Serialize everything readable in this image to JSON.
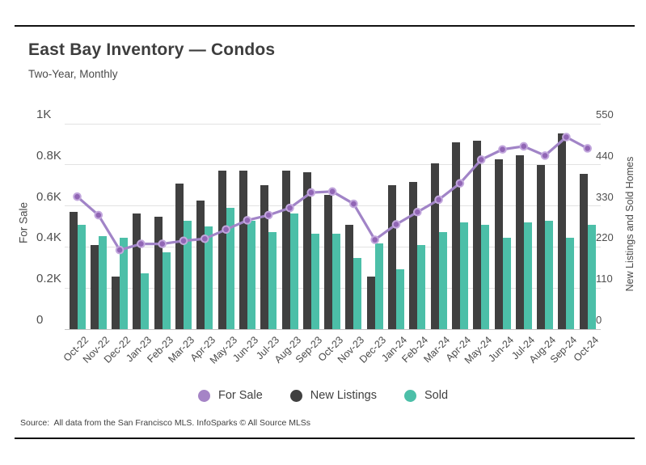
{
  "page": {
    "title": "East Bay Inventory — Condos",
    "subtitle": "Two-Year, Monthly",
    "source_note": "Source:  All data from the San Francisco MLS. InfoSparks © All Source MLSs"
  },
  "legend": [
    {
      "label": "For Sale",
      "color": "#a584c6"
    },
    {
      "label": "New Listings",
      "color": "#404040"
    },
    {
      "label": "Sold",
      "color": "#4cbfa8"
    }
  ],
  "chart_data": {
    "type": "combo",
    "title": "East Bay Inventory — Condos",
    "subtitle": "Two-Year, Monthly",
    "grid": true,
    "legend_position": "bottom",
    "categories": [
      "Oct-22",
      "Nov-22",
      "Dec-22",
      "Jan-23",
      "Feb-23",
      "Mar-23",
      "Apr-23",
      "May-23",
      "Jun-23",
      "Jul-23",
      "Aug-23",
      "Sep-23",
      "Oct-23",
      "Nov-23",
      "Dec-23",
      "Jan-24",
      "Feb-24",
      "Mar-24",
      "Apr-24",
      "May-24",
      "Jun-24",
      "Jul-24",
      "Aug-24",
      "Sep-24",
      "Oct-24"
    ],
    "left_axis": {
      "title": "For Sale",
      "min": 0,
      "max": 1000,
      "tick_values": [
        0,
        200,
        400,
        600,
        800,
        1000
      ],
      "tick_labels": [
        "0",
        "0.2K",
        "0.4K",
        "0.6K",
        "0.8K",
        "1K"
      ]
    },
    "right_axis": {
      "title": "New Listings and Sold Homes",
      "min": 0,
      "max": 550,
      "tick_values": [
        0,
        110,
        220,
        330,
        440,
        550
      ],
      "tick_labels": [
        "0",
        "110",
        "220",
        "330",
        "440",
        "550"
      ]
    },
    "series": [
      {
        "name": "For Sale",
        "type": "line",
        "axis": "left",
        "color": "#a184c7",
        "marker_fill": "#9166b5",
        "marker_stroke": "#c2a7dd",
        "values": [
          645,
          555,
          385,
          415,
          415,
          430,
          440,
          485,
          530,
          555,
          590,
          665,
          670,
          610,
          435,
          510,
          570,
          630,
          710,
          825,
          875,
          890,
          845,
          935,
          880
        ]
      },
      {
        "name": "New Listings",
        "type": "bar",
        "axis": "right",
        "color": "#404040",
        "values": [
          315,
          225,
          140,
          310,
          300,
          390,
          345,
          425,
          425,
          385,
          425,
          420,
          360,
          280,
          140,
          385,
          395,
          445,
          500,
          505,
          455,
          465,
          440,
          525,
          415
        ]
      },
      {
        "name": "Sold",
        "type": "bar",
        "axis": "right",
        "color": "#4cbfa8",
        "values": [
          280,
          250,
          245,
          150,
          205,
          290,
          275,
          325,
          290,
          260,
          310,
          255,
          255,
          190,
          230,
          160,
          225,
          260,
          285,
          280,
          245,
          285,
          290,
          245,
          280
        ]
      }
    ]
  }
}
